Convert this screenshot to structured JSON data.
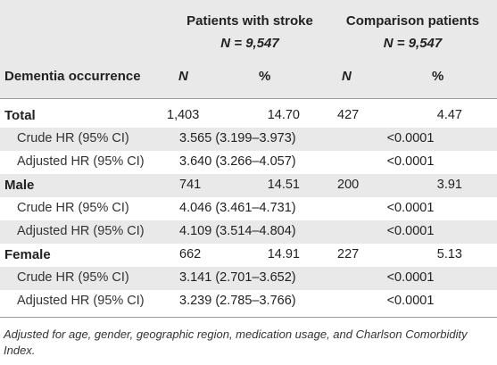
{
  "header": {
    "group1_title": "Patients with stroke",
    "group1_n": "N = 9,547",
    "group2_title": "Comparison patients",
    "group2_n": "N = 9,547",
    "row_label_header": "Dementia occurrence",
    "col_n1": "N",
    "col_pct1": "%",
    "col_n2": "N",
    "col_pct2": "%"
  },
  "rows": [
    {
      "label": "Total",
      "n1": "1,403",
      "pct1": "14.70",
      "n2": "427",
      "pct2": "4.47"
    },
    {
      "label": "Crude HR (95% CI)",
      "hr": "3.565 (3.199–3.973)",
      "p": "<0.0001"
    },
    {
      "label": "Adjusted HR (95% CI)",
      "hr": "3.640 (3.266–4.057)",
      "p": "<0.0001"
    },
    {
      "label": "Male",
      "n1": "741",
      "pct1": "14.51",
      "n2": "200",
      "pct2": "3.91"
    },
    {
      "label": "Crude HR (95% CI)",
      "hr": "4.046 (3.461–4.731)",
      "p": "<0.0001"
    },
    {
      "label": "Adjusted HR (95% CI)",
      "hr": "4.109 (3.514–4.804)",
      "p": "<0.0001"
    },
    {
      "label": "Female",
      "n1": "662",
      "pct1": "14.91",
      "n2": "227",
      "pct2": "5.13"
    },
    {
      "label": "Crude HR (95% CI)",
      "hr": "3.141 (2.701–3.652)",
      "p": "<0.0001"
    },
    {
      "label": "Adjusted HR (95% CI)",
      "hr": "3.239 (2.785–3.766)",
      "p": "<0.0001"
    }
  ],
  "footnote": "Adjusted for age, gender, geographic region, medication usage, and Charlson Comorbidity Index."
}
